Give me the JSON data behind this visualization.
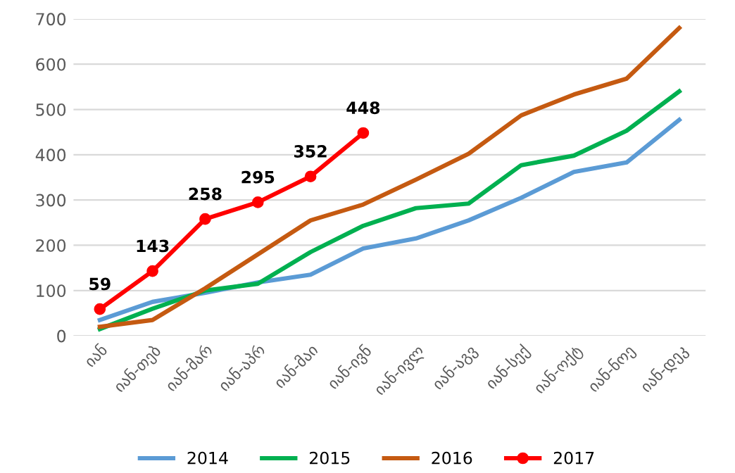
{
  "chart_data": {
    "type": "line",
    "categories": [
      "იან",
      "იან-თებ",
      "იან-მარ",
      "იან-აპრ",
      "იან-მაი",
      "იან-ივნ",
      "იან-ივლ",
      "იან-აგვ",
      "იან-სექ",
      "იან-ოქტ",
      "იან-ნოე",
      "იან-დეკ"
    ],
    "series": [
      {
        "name": "2014",
        "color": "#5b9bd5",
        "values": [
          35,
          75,
          95,
          118,
          135,
          193,
          215,
          255,
          305,
          362,
          383,
          477
        ]
      },
      {
        "name": "2015",
        "color": "#00b050",
        "values": [
          15,
          60,
          100,
          115,
          185,
          243,
          282,
          292,
          377,
          398,
          453,
          540
        ]
      },
      {
        "name": "2016",
        "color": "#c55a11",
        "values": [
          20,
          35,
          105,
          180,
          255,
          290,
          345,
          402,
          487,
          533,
          568,
          680
        ]
      },
      {
        "name": "2017",
        "color": "#ff0000",
        "marker": "circle",
        "values": [
          59,
          143,
          258,
          295,
          352,
          448,
          null,
          null,
          null,
          null,
          null,
          null
        ],
        "value_labels": [
          "59",
          "143",
          "258",
          "295",
          "352",
          "448",
          null,
          null,
          null,
          null,
          null,
          null
        ]
      }
    ],
    "ylim": [
      0,
      700
    ],
    "yticks": [
      0,
      100,
      200,
      300,
      400,
      500,
      600,
      700
    ],
    "grid": "y",
    "legend": "bottom",
    "line_style": "solid"
  }
}
